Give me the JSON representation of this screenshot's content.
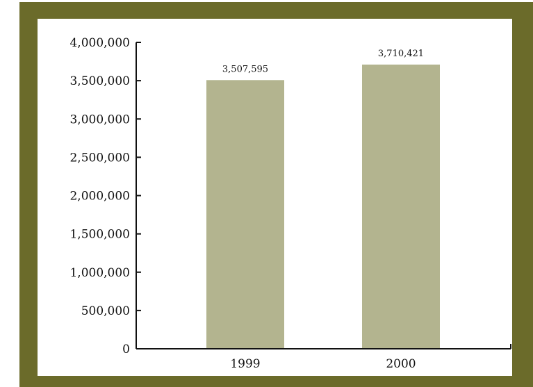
{
  "chart_data": {
    "type": "bar",
    "title": "",
    "xlabel": "",
    "ylabel": "",
    "categories": [
      "1999",
      "2000"
    ],
    "values": [
      3507595,
      3710421
    ],
    "data_labels": [
      "3,507,595",
      "3,710,421"
    ],
    "ylim": [
      0,
      4000000
    ],
    "yticks": [
      0,
      500000,
      1000000,
      1500000,
      2000000,
      2500000,
      3000000,
      3500000,
      4000000
    ],
    "ytick_labels": [
      "0",
      "500,000",
      "1,000,000",
      "1,500,000",
      "2,000,000",
      "2,500,000",
      "3,000,000",
      "3,500,000",
      "4,000,000"
    ],
    "grid": false,
    "legend": "none",
    "colors": {
      "bar": "#b3b48f",
      "frame": "#6b6b2a",
      "axis": "#111111"
    }
  }
}
